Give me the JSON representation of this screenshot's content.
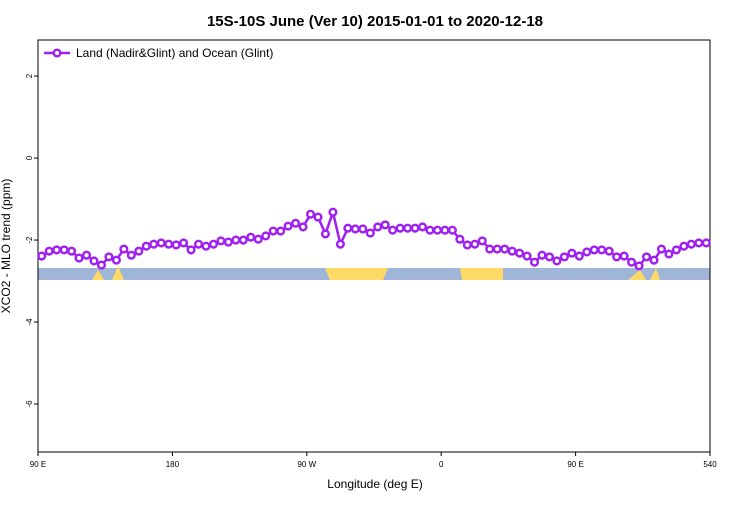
{
  "chart_data": {
    "type": "line",
    "title": "15S-10S June (Ver 10)   2015-01-01 to 2020-12-18",
    "x_label": "Longitude (deg E)",
    "y_label": "XCO2 - MLO trend (ppm)",
    "legend": "top-left",
    "x": [
      92.5,
      97.5,
      102.5,
      107.5,
      112.5,
      117.5,
      122.5,
      127.5,
      132.5,
      137.5,
      142.5,
      147.5,
      152.5,
      157.5,
      162.5,
      167.5,
      172.5,
      177.5,
      182.5,
      187.5,
      192.5,
      197.5,
      202.5,
      207.5,
      212.5,
      217.5,
      222.5,
      227.5,
      232.5,
      237.5,
      242.5,
      247.5,
      252.5,
      257.5,
      262.5,
      267.5,
      272.5,
      277.5,
      282.5,
      287.5,
      292.5,
      297.5,
      302.5,
      307.5,
      312.5,
      317.5,
      322.5,
      327.5,
      332.5,
      337.5,
      342.5,
      347.5,
      352.5,
      357.5,
      362.5,
      367.5,
      372.5,
      377.5,
      382.5,
      387.5,
      392.5,
      397.5,
      402.5,
      407.5,
      412.5,
      417.5,
      422.5,
      427.5,
      432.5,
      437.5,
      442.5,
      447.5,
      452.5,
      457.5,
      462.5,
      467.5,
      472.5,
      477.5,
      482.5,
      487.5,
      492.5,
      497.5,
      502.5,
      507.5,
      512.5,
      517.5,
      522.5,
      527.5,
      532.5,
      537.5
    ],
    "series": [
      {
        "name": "Land (Nadir&Glint) and Ocean (Glint)",
        "color": "#a020f0",
        "values": [
          -2.39,
          -2.27,
          -2.24,
          -2.24,
          -2.27,
          -2.44,
          -2.37,
          -2.51,
          -2.61,
          -2.41,
          -2.49,
          -2.22,
          -2.37,
          -2.27,
          -2.15,
          -2.1,
          -2.07,
          -2.1,
          -2.12,
          -2.07,
          -2.24,
          -2.1,
          -2.15,
          -2.1,
          -2.02,
          -2.05,
          -2.0,
          -2.0,
          -1.93,
          -1.98,
          -1.9,
          -1.78,
          -1.78,
          -1.66,
          -1.59,
          -1.68,
          -1.37,
          -1.44,
          -1.85,
          -1.32,
          -2.1,
          -1.71,
          -1.73,
          -1.73,
          -1.83,
          -1.68,
          -1.63,
          -1.76,
          -1.71,
          -1.71,
          -1.71,
          -1.68,
          -1.76,
          -1.76,
          -1.76,
          -1.76,
          -1.98,
          -2.12,
          -2.1,
          -2.02,
          -2.22,
          -2.22,
          -2.22,
          -2.27,
          -2.32,
          -2.39,
          -2.54,
          -2.37,
          -2.41,
          -2.51,
          -2.41,
          -2.32,
          -2.39,
          -2.29,
          -2.24,
          -2.24,
          -2.27,
          -2.41,
          -2.39,
          -2.54,
          -2.63,
          -2.41,
          -2.49,
          -2.22,
          -2.34,
          -2.24,
          -2.15,
          -2.1,
          -2.07,
          -2.07
        ]
      }
    ],
    "xlim": [
      90,
      540
    ],
    "xticks": [
      {
        "value": 90,
        "label": "90 E"
      },
      180,
      {
        "value": 270,
        "label": "90 W"
      },
      {
        "value": 360,
        "label": "0"
      },
      {
        "value": 450,
        "label": "90 E"
      },
      540
    ],
    "ylim": [
      -7.17,
      2.88
    ],
    "yticks": [
      -6,
      -4,
      -2,
      0,
      2
    ]
  }
}
